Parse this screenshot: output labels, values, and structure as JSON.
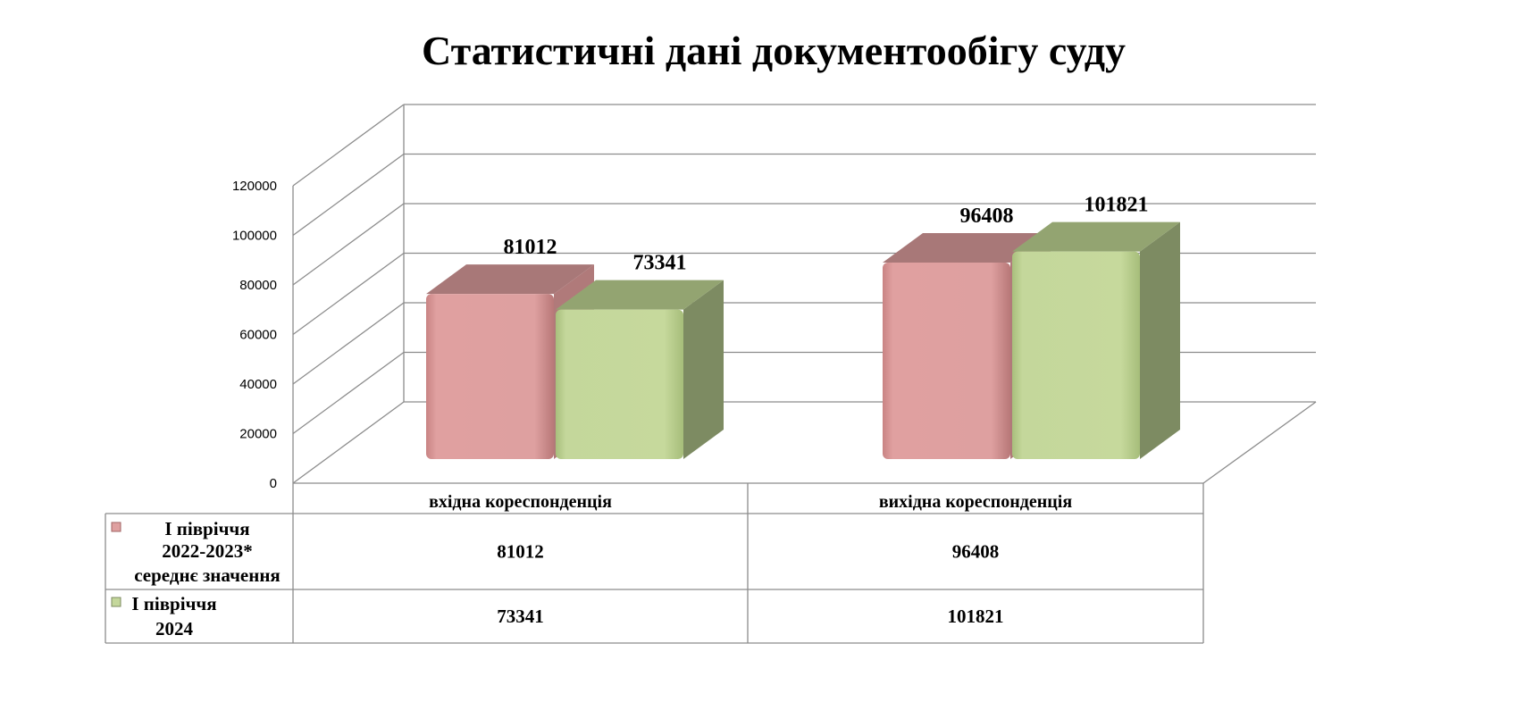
{
  "chart_data": {
    "type": "bar",
    "title": "Статистичні дані документообігу суду",
    "categories": [
      "вхідна кореспонденція",
      "вихідна кореспонденція"
    ],
    "series": [
      {
        "name": "І півріччя 2022-2023* середнє значення",
        "legend_lines": [
          "І півріччя",
          "2022-2023*",
          "середнє значення"
        ],
        "values": [
          81012,
          96408
        ],
        "value_labels": [
          "81012",
          "96408"
        ],
        "color": "#dfa0a0"
      },
      {
        "name": "І півріччя 2024",
        "legend_lines": [
          "І півріччя",
          "2024"
        ],
        "values": [
          73341,
          101821
        ],
        "value_labels": [
          "73341",
          "101821"
        ],
        "color": "#c4d79b"
      }
    ],
    "ylim": [
      0,
      120000
    ],
    "yticks": [
      "0",
      "20000",
      "40000",
      "60000",
      "80000",
      "100000",
      "120000"
    ],
    "grid": true,
    "legend": "data-table"
  }
}
